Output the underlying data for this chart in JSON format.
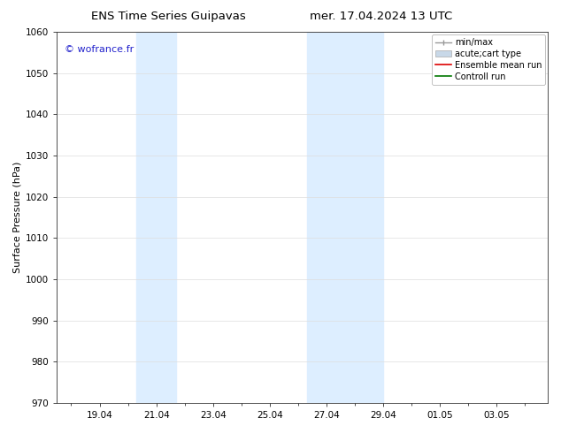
{
  "title_left": "ENS Time Series Guipavas",
  "title_right": "mer. 17.04.2024 13 UTC",
  "ylabel": "Surface Pressure (hPa)",
  "ylim": [
    970,
    1060
  ],
  "yticks": [
    970,
    980,
    990,
    1000,
    1010,
    1020,
    1030,
    1040,
    1050,
    1060
  ],
  "x_numeric": [
    19,
    21,
    23,
    25,
    27,
    29,
    31,
    33
  ],
  "xtick_labels": [
    "19.04",
    "21.04",
    "23.04",
    "25.04",
    "27.04",
    "29.04",
    "01.05",
    "03.05"
  ],
  "x_min": 17.5,
  "x_max": 34.8,
  "watermark": "© wofrance.fr",
  "watermark_color": "#2222cc",
  "shaded_bands": [
    {
      "xstart": 20.3,
      "xend": 21.7
    },
    {
      "xstart": 26.3,
      "xend": 29.0
    }
  ],
  "shade_color": "#ddeeff",
  "legend_labels": [
    "min/max",
    "acute;cart type",
    "Ensemble mean run",
    "Controll run"
  ],
  "legend_colors": [
    "#999999",
    "#c8d8e8",
    "#dd0000",
    "#007700"
  ],
  "background_color": "#ffffff",
  "grid_color": "#dddddd",
  "title_fontsize": 9.5,
  "tick_fontsize": 7.5,
  "legend_fontsize": 7,
  "ylabel_fontsize": 8,
  "watermark_fontsize": 8
}
